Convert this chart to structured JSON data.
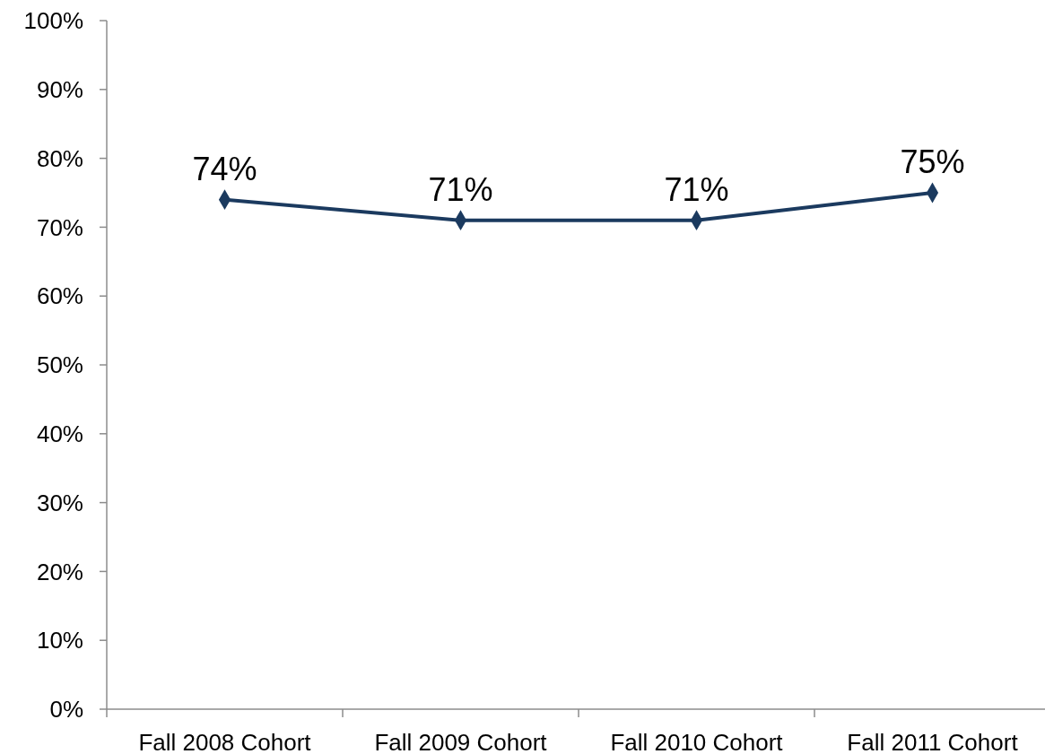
{
  "chart_data": {
    "type": "line",
    "categories": [
      "Fall 2008 Cohort",
      "Fall 2009 Cohort",
      "Fall 2010 Cohort",
      "Fall 2011 Cohort"
    ],
    "series": [
      {
        "color": "#1b3a5f",
        "values": [
          74,
          71,
          71,
          75
        ]
      }
    ],
    "value_labels": [
      "74%",
      "71%",
      "71%",
      "75%"
    ],
    "ylim": [
      0,
      100
    ],
    "yticks": [
      {
        "value": 0,
        "label": "0%"
      },
      {
        "value": 10,
        "label": "10%"
      },
      {
        "value": 20,
        "label": "20%"
      },
      {
        "value": 30,
        "label": "30%"
      },
      {
        "value": 40,
        "label": "40%"
      },
      {
        "value": 50,
        "label": "50%"
      },
      {
        "value": 60,
        "label": "60%"
      },
      {
        "value": 70,
        "label": "70%"
      },
      {
        "value": 80,
        "label": "80%"
      },
      {
        "value": 90,
        "label": "90%"
      },
      {
        "value": 100,
        "label": "100%"
      }
    ],
    "marker": "diamond",
    "grid": false
  }
}
